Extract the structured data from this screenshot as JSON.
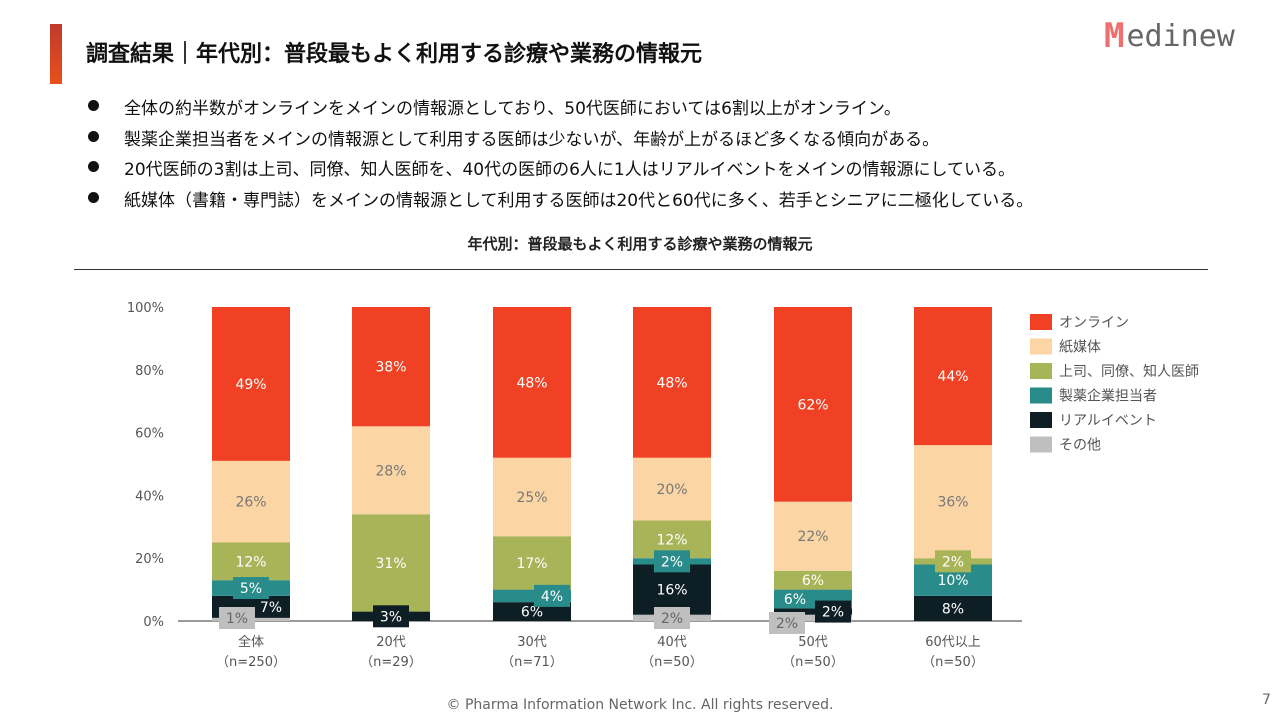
{
  "header": {
    "title": "調査結果｜年代別：普段最もよく利用する診療や業務の情報元",
    "logo": "Medinew",
    "logo_mark": "M",
    "logo_rest": "edinew"
  },
  "bullets": [
    "全体の約半数がオンラインをメインの情報源としており、50代医師においては6割以上がオンライン。",
    "製薬企業担当者をメインの情報源として利用する医師は少ないが、年齢が上がるほど多くなる傾向がある。",
    "20代医師の3割は上司、同僚、知人医師を、40代の医師の6人に1人はリアルイベントをメインの情報源にしている。",
    "紙媒体（書籍・専門誌）をメインの情報源として利用する医師は20代と60代に多く、若手とシニアに二極化している。"
  ],
  "chart_data": {
    "type": "bar",
    "stacked": true,
    "percent": true,
    "title": "年代別：普段最もよく利用する診療や業務の情報元",
    "categories": [
      "全体",
      "20代",
      "30代",
      "40代",
      "50代",
      "60代以上"
    ],
    "category_sub": [
      "（n=250）",
      "（n=29）",
      "（n=71）",
      "（n=50）",
      "（n=50）",
      "（n=50）"
    ],
    "ylim": [
      0,
      100
    ],
    "yticks": [
      "0%",
      "20%",
      "40%",
      "60%",
      "80%",
      "100%"
    ],
    "legend_position": "right",
    "series": [
      {
        "name": "その他",
        "color": "#BFBFBF",
        "values": [
          1,
          0,
          0,
          2,
          2,
          0
        ]
      },
      {
        "name": "リアルイベント",
        "color": "#0E1E25",
        "values": [
          7,
          3,
          6,
          16,
          2,
          8
        ]
      },
      {
        "name": "製薬企業担当者",
        "color": "#2A8C8A",
        "values": [
          5,
          0,
          4,
          2,
          6,
          10
        ]
      },
      {
        "name": "上司、同僚、知人医師",
        "color": "#A8B458",
        "values": [
          12,
          31,
          17,
          12,
          6,
          2
        ]
      },
      {
        "name": "紙媒体",
        "color": "#FCD5A5",
        "values": [
          26,
          28,
          25,
          20,
          22,
          36
        ]
      },
      {
        "name": "オンライン",
        "color": "#F04124",
        "values": [
          49,
          38,
          48,
          48,
          62,
          44
        ]
      }
    ]
  },
  "footer": "© Pharma Information Network Inc.  All rights reserved.",
  "page_number": "7"
}
